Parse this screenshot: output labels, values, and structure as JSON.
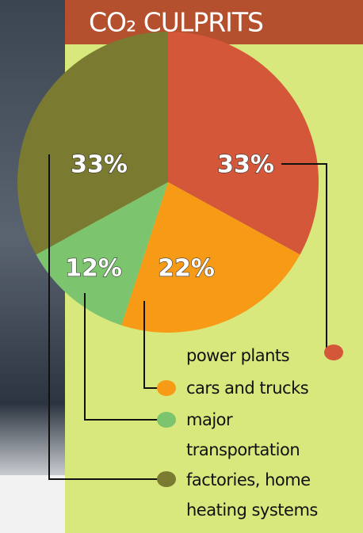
{
  "chart_data": {
    "type": "pie",
    "title": "CO₂ CULPRITS",
    "categories": [
      "power plants",
      "cars and trucks",
      "major transportation",
      "factories, home heating systems"
    ],
    "values": [
      33,
      22,
      12,
      33
    ],
    "value_labels": [
      "33%",
      "22%",
      "12%",
      "33%"
    ],
    "colors": [
      "#d4573a",
      "#f79b17",
      "#7cc46e",
      "#7a7a30"
    ]
  }
}
